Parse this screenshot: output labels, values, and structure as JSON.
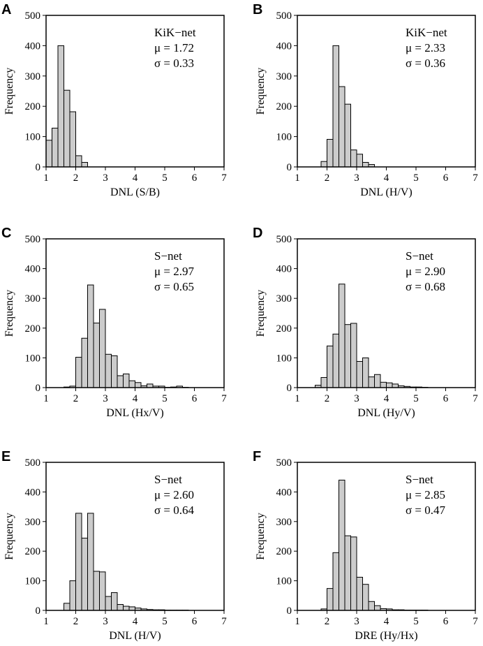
{
  "figure": {
    "ylabel": "Frequency",
    "ylim": [
      0,
      500
    ],
    "xlim": [
      1,
      7
    ],
    "yticks": [
      0,
      100,
      200,
      300,
      400,
      500
    ],
    "xticks": [
      1,
      2,
      3,
      4,
      5,
      6,
      7
    ]
  },
  "chart_data": [
    {
      "type": "bar",
      "panel": "A",
      "network": "KiK−net",
      "mu": "μ = 1.72",
      "sigma": "σ = 0.33",
      "xlabel": "DNL (S/B)",
      "ylabel": "Frequency",
      "bin_start": 1.0,
      "bin_width": 0.2,
      "values": [
        88,
        128,
        400,
        253,
        182,
        37,
        15,
        0,
        0,
        0,
        0,
        0,
        0,
        0,
        0,
        0,
        0,
        0,
        0,
        0,
        0,
        0,
        0,
        0,
        0,
        0,
        0,
        0,
        0,
        0
      ],
      "ylim": [
        0,
        500
      ],
      "xlim": [
        1,
        7
      ]
    },
    {
      "type": "bar",
      "panel": "B",
      "network": "KiK−net",
      "mu": "μ = 2.33",
      "sigma": "σ = 0.36",
      "xlabel": "DNL (H/V)",
      "ylabel": "Frequency",
      "bin_start": 1.0,
      "bin_width": 0.2,
      "values": [
        0,
        0,
        0,
        0,
        18,
        91,
        400,
        265,
        207,
        56,
        42,
        15,
        8,
        0,
        0,
        0,
        0,
        0,
        0,
        0,
        0,
        0,
        0,
        0,
        0,
        0,
        0,
        0,
        0,
        0
      ],
      "ylim": [
        0,
        500
      ],
      "xlim": [
        1,
        7
      ]
    },
    {
      "type": "bar",
      "panel": "C",
      "network": "S−net",
      "mu": "μ = 2.97",
      "sigma": "σ = 0.65",
      "xlabel": "DNL (Hx/V)",
      "ylabel": "Frequency",
      "bin_start": 1.0,
      "bin_width": 0.2,
      "values": [
        0,
        0,
        0,
        2,
        5,
        102,
        166,
        345,
        217,
        263,
        112,
        107,
        40,
        46,
        23,
        17,
        6,
        12,
        5,
        5,
        1,
        2,
        5,
        1,
        0,
        0,
        0,
        0,
        0,
        0
      ],
      "ylim": [
        0,
        500
      ],
      "xlim": [
        1,
        7
      ]
    },
    {
      "type": "bar",
      "panel": "D",
      "network": "S−net",
      "mu": "μ = 2.90",
      "sigma": "σ = 0.68",
      "xlabel": "DNL (Hy/V)",
      "ylabel": "Frequency",
      "bin_start": 1.0,
      "bin_width": 0.2,
      "values": [
        0,
        0,
        0,
        8,
        34,
        140,
        180,
        348,
        212,
        216,
        88,
        100,
        36,
        44,
        18,
        16,
        12,
        6,
        4,
        2,
        2,
        1,
        0,
        0,
        0,
        0,
        0,
        0,
        0,
        0
      ],
      "ylim": [
        0,
        500
      ],
      "xlim": [
        1,
        7
      ]
    },
    {
      "type": "bar",
      "panel": "E",
      "network": "S−net",
      "mu": "μ = 2.60",
      "sigma": "σ = 0.64",
      "xlabel": "DNL (H/V)",
      "ylabel": "Frequency",
      "bin_start": 1.0,
      "bin_width": 0.2,
      "values": [
        0,
        0,
        0,
        24,
        100,
        328,
        244,
        328,
        132,
        130,
        47,
        60,
        20,
        14,
        12,
        8,
        5,
        3,
        2,
        2,
        1,
        1,
        1,
        1,
        0,
        0,
        0,
        0,
        0,
        0
      ],
      "ylim": [
        0,
        500
      ],
      "xlim": [
        1,
        7
      ]
    },
    {
      "type": "bar",
      "panel": "F",
      "network": "S−net",
      "mu": "μ = 2.85",
      "sigma": "σ = 0.47",
      "xlabel": "DRE (Hy/Hx)",
      "ylabel": "Frequency",
      "bin_start": 1.0,
      "bin_width": 0.2,
      "values": [
        0,
        0,
        0,
        0,
        5,
        74,
        195,
        440,
        252,
        248,
        112,
        88,
        30,
        16,
        6,
        5,
        2,
        2,
        1,
        1,
        1,
        1,
        0,
        0,
        0,
        0,
        0,
        0,
        0,
        0
      ],
      "ylim": [
        0,
        500
      ],
      "xlim": [
        1,
        7
      ]
    }
  ]
}
